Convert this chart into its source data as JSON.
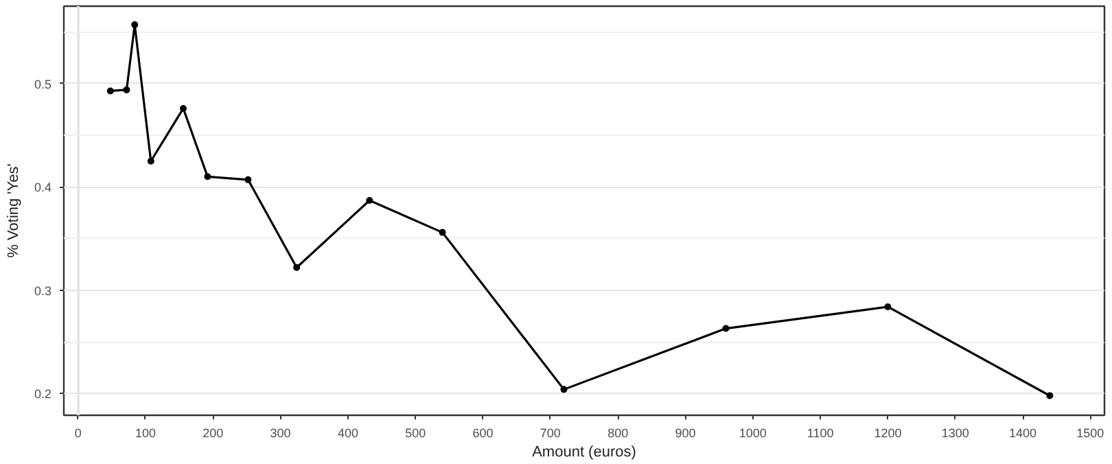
{
  "chart_data": {
    "type": "line",
    "xlabel": "Amount (euros)",
    "ylabel": "% Voting 'Yes'",
    "x": [
      48,
      72,
      84,
      108,
      156,
      192,
      252,
      324,
      432,
      540,
      720,
      960,
      1200,
      1440
    ],
    "series": [
      {
        "color": "#000000",
        "values": [
          0.493,
          0.494,
          0.557,
          0.425,
          0.476,
          0.41,
          0.407,
          0.322,
          0.387,
          0.356,
          0.204,
          0.263,
          0.284,
          0.198
        ]
      }
    ],
    "xlim": [
      -21,
      1521
    ],
    "ylim": [
      0.179,
      0.575
    ],
    "xticks": [
      0,
      100,
      200,
      300,
      400,
      500,
      600,
      700,
      800,
      900,
      1000,
      1100,
      1200,
      1300,
      1400,
      1500
    ],
    "yticks": [
      0.2,
      0.3,
      0.4,
      0.5
    ],
    "grid": true,
    "marker": "circle",
    "line_style": "solid"
  }
}
